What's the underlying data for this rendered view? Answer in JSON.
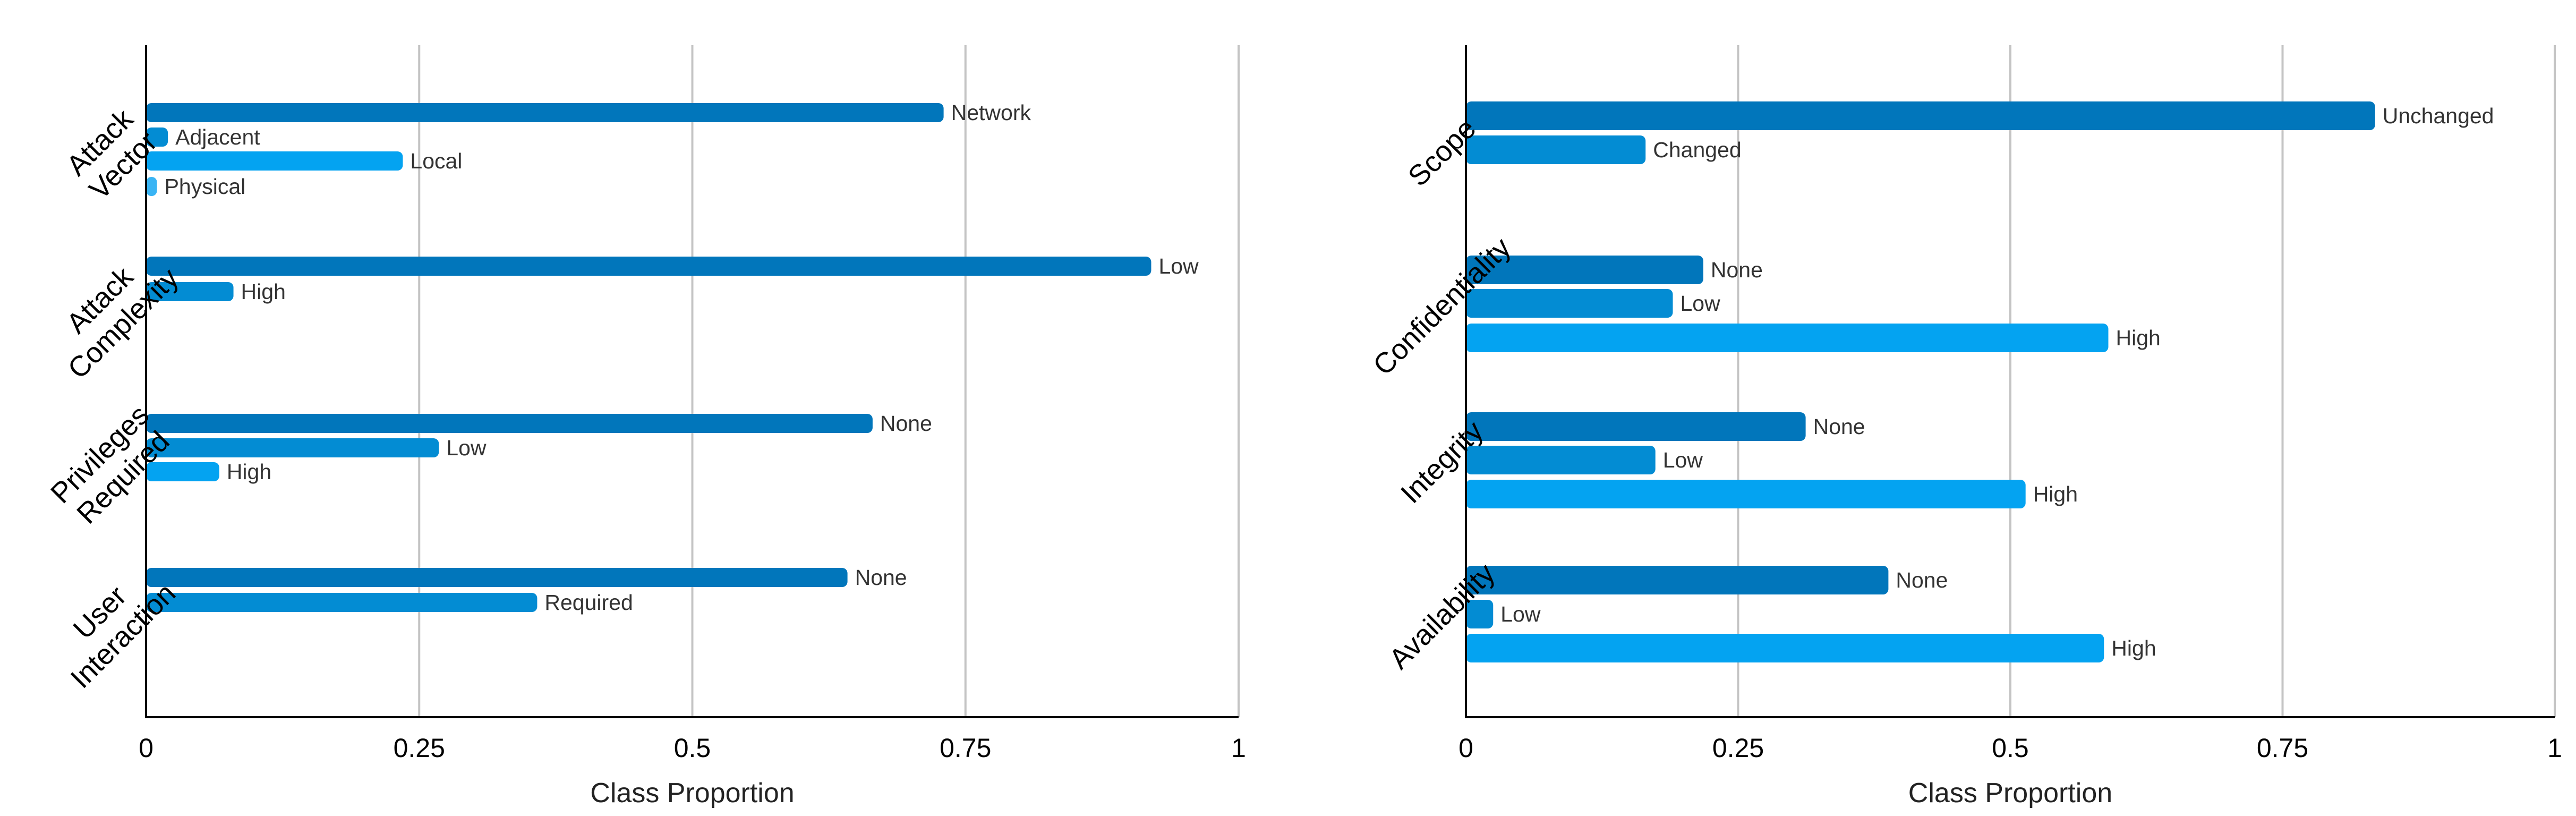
{
  "chart_data": [
    {
      "type": "bar",
      "orientation": "horizontal",
      "xlabel": "Class Proportion",
      "xlim": [
        0,
        1
      ],
      "xticks": [
        "0",
        "0.25",
        "0.5",
        "0.75",
        "1"
      ],
      "grid": "vertical",
      "groups": [
        {
          "label": [
            "Attack",
            "Vector"
          ],
          "bars": [
            {
              "label": "Network",
              "value": 0.73,
              "color": "#0176bb"
            },
            {
              "label": "Adjacent",
              "value": 0.02,
              "color": "#038cd3"
            },
            {
              "label": "Local",
              "value": 0.235,
              "color": "#04a3f1"
            },
            {
              "label": "Physical",
              "value": 0.01,
              "color": "#39b4f4"
            }
          ]
        },
        {
          "label": [
            "Attack",
            "Complexity"
          ],
          "bars": [
            {
              "label": "Low",
              "value": 0.92,
              "color": "#0176bb"
            },
            {
              "label": "High",
              "value": 0.08,
              "color": "#038cd3"
            }
          ]
        },
        {
          "label": [
            "Privileges",
            "Required"
          ],
          "bars": [
            {
              "label": "None",
              "value": 0.665,
              "color": "#0176bb"
            },
            {
              "label": "Low",
              "value": 0.268,
              "color": "#038cd3"
            },
            {
              "label": "High",
              "value": 0.067,
              "color": "#04a3f1"
            }
          ]
        },
        {
          "label": [
            "User",
            "Interaction"
          ],
          "bars": [
            {
              "label": "None",
              "value": 0.642,
              "color": "#0176bb"
            },
            {
              "label": "Required",
              "value": 0.358,
              "color": "#038cd3"
            }
          ]
        }
      ]
    },
    {
      "type": "bar",
      "orientation": "horizontal",
      "xlabel": "Class Proportion",
      "xlim": [
        0,
        1
      ],
      "xticks": [
        "0",
        "0.25",
        "0.5",
        "0.75",
        "1"
      ],
      "grid": "vertical",
      "groups": [
        {
          "label": [
            "Scope"
          ],
          "bars": [
            {
              "label": "Unchanged",
              "value": 0.835,
              "color": "#0176bb"
            },
            {
              "label": "Changed",
              "value": 0.165,
              "color": "#038cd3"
            }
          ]
        },
        {
          "label": [
            "Confidentiality"
          ],
          "bars": [
            {
              "label": "None",
              "value": 0.218,
              "color": "#0176bb"
            },
            {
              "label": "Low",
              "value": 0.19,
              "color": "#038cd3"
            },
            {
              "label": "High",
              "value": 0.59,
              "color": "#04a3f1"
            }
          ]
        },
        {
          "label": [
            "Integrity"
          ],
          "bars": [
            {
              "label": "None",
              "value": 0.312,
              "color": "#0176bb"
            },
            {
              "label": "Low",
              "value": 0.174,
              "color": "#038cd3"
            },
            {
              "label": "High",
              "value": 0.514,
              "color": "#04a3f1"
            }
          ]
        },
        {
          "label": [
            "Availability"
          ],
          "bars": [
            {
              "label": "None",
              "value": 0.388,
              "color": "#0176bb"
            },
            {
              "label": "Low",
              "value": 0.025,
              "color": "#038cd3"
            },
            {
              "label": "High",
              "value": 0.586,
              "color": "#04a3f1"
            }
          ]
        }
      ]
    }
  ]
}
